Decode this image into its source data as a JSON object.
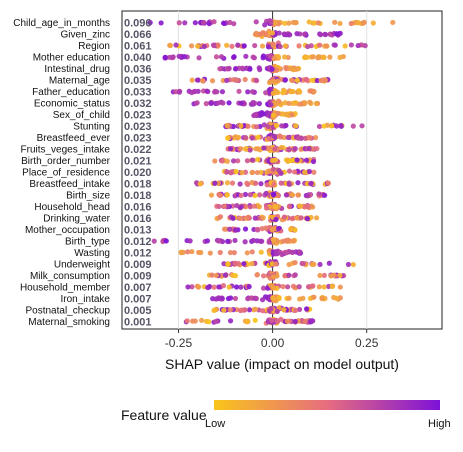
{
  "chart_data": {
    "type": "scatter",
    "subtype": "shap_beeswarm",
    "title": "",
    "xlabel": "SHAP value (impact on model output)",
    "ylabel": "",
    "xlim": [
      -0.4,
      0.45
    ],
    "xticks": [
      -0.25,
      0.0,
      0.25
    ],
    "xtick_labels": [
      "-0.25",
      "0.00",
      "0.25"
    ],
    "grid": true,
    "colorbar": {
      "title": "Feature value",
      "low_label": "Low",
      "high_label": "High",
      "colors": [
        "#f9c51a",
        "#e66d7f",
        "#7e12d8"
      ]
    },
    "features": [
      {
        "name": "Child_age_in_months",
        "importance": "0.096",
        "spread": [
          -0.33,
          0.32
        ],
        "low_side": "right"
      },
      {
        "name": "Given_zinc",
        "importance": "0.066",
        "spread": [
          -0.05,
          0.18
        ],
        "low_side": "left"
      },
      {
        "name": "Region",
        "importance": "0.061",
        "spread": [
          -0.28,
          0.28
        ],
        "low_side": "mixed"
      },
      {
        "name": "Mother education",
        "importance": "0.040",
        "spread": [
          -0.3,
          0.2
        ],
        "low_side": "right"
      },
      {
        "name": "Intestinal_drug",
        "importance": "0.036",
        "spread": [
          -0.14,
          0.07
        ],
        "low_side": "right"
      },
      {
        "name": "Maternal_age",
        "importance": "0.035",
        "spread": [
          -0.22,
          0.15
        ],
        "low_side": "mixed"
      },
      {
        "name": "Father_education",
        "importance": "0.033",
        "spread": [
          -0.27,
          0.12
        ],
        "low_side": "right"
      },
      {
        "name": "Economic_status",
        "importance": "0.032",
        "spread": [
          -0.21,
          0.12
        ],
        "low_side": "right"
      },
      {
        "name": "Sex_of_child",
        "importance": "0.023",
        "spread": [
          -0.05,
          0.06
        ],
        "low_side": "right"
      },
      {
        "name": "Stunting",
        "importance": "0.023",
        "spread": [
          -0.13,
          0.25
        ],
        "low_side": "mixed"
      },
      {
        "name": "Breastfeed_ever",
        "importance": "0.023",
        "spread": [
          -0.12,
          0.12
        ],
        "low_side": "mixed"
      },
      {
        "name": "Fruits_veges_intake",
        "importance": "0.022",
        "spread": [
          -0.12,
          0.12
        ],
        "low_side": "mixed"
      },
      {
        "name": "Birth_order_number",
        "importance": "0.021",
        "spread": [
          -0.17,
          0.11
        ],
        "low_side": "mixed"
      },
      {
        "name": "Place_of_residence",
        "importance": "0.020",
        "spread": [
          -0.13,
          0.11
        ],
        "low_side": "mixed"
      },
      {
        "name": "Breastfeed_intake",
        "importance": "0.018",
        "spread": [
          -0.22,
          0.15
        ],
        "low_side": "mixed"
      },
      {
        "name": "Birth_size",
        "importance": "0.018",
        "spread": [
          -0.17,
          0.14
        ],
        "low_side": "mixed"
      },
      {
        "name": "Household_head",
        "importance": "0.016",
        "spread": [
          -0.15,
          0.11
        ],
        "low_side": "mixed"
      },
      {
        "name": "Drinking_water",
        "importance": "0.016",
        "spread": [
          -0.15,
          0.12
        ],
        "low_side": "mixed"
      },
      {
        "name": "Mother_occupation",
        "importance": "0.013",
        "spread": [
          -0.13,
          0.06
        ],
        "low_side": "mixed"
      },
      {
        "name": "Birth_type",
        "importance": "0.012",
        "spread": [
          -0.33,
          0.06
        ],
        "low_side": "right"
      },
      {
        "name": "Wasting",
        "importance": "0.012",
        "spread": [
          -0.3,
          0.08
        ],
        "low_side": "left"
      },
      {
        "name": "Underweight",
        "importance": "0.009",
        "spread": [
          -0.13,
          0.23
        ],
        "low_side": "mixed"
      },
      {
        "name": "Milk_consumption",
        "importance": "0.009",
        "spread": [
          -0.17,
          0.19
        ],
        "low_side": "mixed"
      },
      {
        "name": "Household_member",
        "importance": "0.007",
        "spread": [
          -0.23,
          0.19
        ],
        "low_side": "mixed"
      },
      {
        "name": "Iron_intake",
        "importance": "0.007",
        "spread": [
          -0.16,
          0.19
        ],
        "low_side": "right"
      },
      {
        "name": "Postnatal_checkup",
        "importance": "0.005",
        "spread": [
          -0.17,
          0.1
        ],
        "low_side": "mixed"
      },
      {
        "name": "Maternal_smoking",
        "importance": "0.001",
        "spread": [
          -0.23,
          0.11
        ],
        "low_side": "mixed"
      }
    ]
  }
}
